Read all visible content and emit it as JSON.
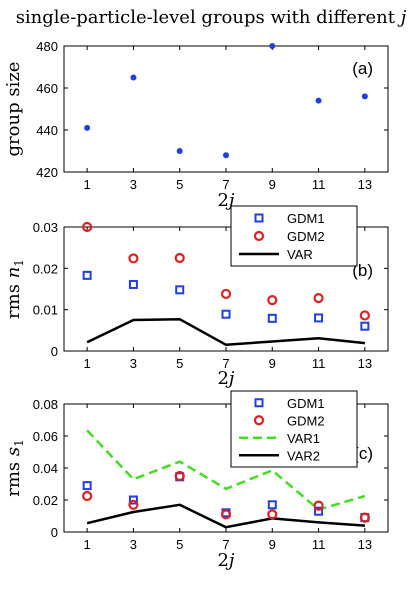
{
  "figure": {
    "title": "single-particle-level groups with different j"
  },
  "chart_data": [
    {
      "type": "scatter",
      "panel_label": "(a)",
      "xlabel": "2j",
      "ylabel": "group size",
      "x": [
        1,
        3,
        5,
        7,
        9,
        11,
        13
      ],
      "xlim": [
        0,
        14
      ],
      "ylim": [
        420,
        480
      ],
      "yticks": [
        420,
        440,
        460,
        480
      ],
      "ytick_labels": [
        "420",
        "440",
        "460",
        "480"
      ],
      "grid": false,
      "legend": "none",
      "series": [
        {
          "marker": "dot",
          "color": "#1f3fe0",
          "values": [
            441,
            465,
            430,
            428,
            480,
            454,
            456
          ]
        }
      ]
    },
    {
      "type": "scatter",
      "panel_label": "(b)",
      "xlabel": "2j",
      "ylabel": "rms n1",
      "x": [
        1,
        3,
        5,
        7,
        9,
        11,
        13
      ],
      "xlim": [
        0,
        14
      ],
      "ylim": [
        0,
        0.03
      ],
      "yticks": [
        0,
        0.01,
        0.02,
        0.03
      ],
      "ytick_labels": [
        "0",
        "0.01",
        "0.02",
        "0.03"
      ],
      "grid": false,
      "legend": "top-right",
      "series": [
        {
          "name": "GDM1",
          "marker": "square",
          "color": "#1f3fe0",
          "values": [
            0.0183,
            0.0161,
            0.0148,
            0.0089,
            0.0079,
            0.008,
            0.006
          ]
        },
        {
          "name": "GDM2",
          "marker": "circle",
          "color": "#e02020",
          "values": [
            0.03,
            0.0224,
            0.0225,
            0.0138,
            0.0123,
            0.0128,
            0.0086
          ]
        },
        {
          "name": "VAR",
          "marker": "line",
          "color": "#000000",
          "values": [
            0.0021,
            0.0075,
            0.0077,
            0.0015,
            0.0023,
            0.0031,
            0.0019
          ]
        }
      ]
    },
    {
      "type": "scatter",
      "panel_label": "(c)",
      "xlabel": "2j",
      "ylabel": "rms s1",
      "x": [
        1,
        3,
        5,
        7,
        9,
        11,
        13
      ],
      "xlim": [
        0,
        14
      ],
      "ylim": [
        0,
        0.08
      ],
      "yticks": [
        0,
        0.02,
        0.04,
        0.06,
        0.08
      ],
      "ytick_labels": [
        "0",
        "0.02",
        "0.04",
        "0.06",
        "0.08"
      ],
      "grid": false,
      "legend": "top-right",
      "series": [
        {
          "name": "GDM1",
          "marker": "square",
          "color": "#1f3fe0",
          "values": [
            0.029,
            0.02,
            0.0345,
            0.012,
            0.017,
            0.013,
            0.009
          ]
        },
        {
          "name": "GDM2",
          "marker": "circle",
          "color": "#e02020",
          "values": [
            0.0225,
            0.017,
            0.035,
            0.011,
            0.011,
            0.0165,
            0.009
          ]
        },
        {
          "name": "VAR1",
          "marker": "dashed-line",
          "color": "#44dd22",
          "values": [
            0.0635,
            0.033,
            0.044,
            0.027,
            0.0385,
            0.014,
            0.0225
          ]
        },
        {
          "name": "VAR2",
          "marker": "line",
          "color": "#000000",
          "values": [
            0.0055,
            0.0125,
            0.017,
            0.003,
            0.0085,
            0.006,
            0.004
          ]
        }
      ]
    }
  ]
}
